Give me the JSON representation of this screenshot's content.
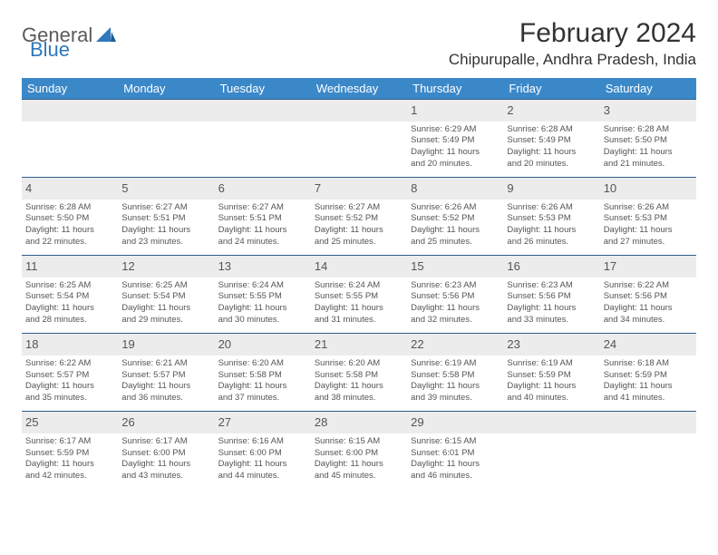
{
  "logo": {
    "part1": "General",
    "part2": "Blue"
  },
  "title": "February 2024",
  "location": "Chipurupalle, Andhra Pradesh, India",
  "colors": {
    "header_bg": "#3b88c9",
    "header_text": "#ffffff",
    "row_border": "#2f5e8c",
    "shade_bg": "#ececec",
    "text": "#444444",
    "logo_gray": "#5a5a5a",
    "logo_blue": "#2f78bd"
  },
  "day_headers": [
    "Sunday",
    "Monday",
    "Tuesday",
    "Wednesday",
    "Thursday",
    "Friday",
    "Saturday"
  ],
  "weeks": [
    [
      null,
      null,
      null,
      null,
      {
        "n": "1",
        "sr": "Sunrise: 6:29 AM",
        "ss": "Sunset: 5:49 PM",
        "d1": "Daylight: 11 hours",
        "d2": "and 20 minutes."
      },
      {
        "n": "2",
        "sr": "Sunrise: 6:28 AM",
        "ss": "Sunset: 5:49 PM",
        "d1": "Daylight: 11 hours",
        "d2": "and 20 minutes."
      },
      {
        "n": "3",
        "sr": "Sunrise: 6:28 AM",
        "ss": "Sunset: 5:50 PM",
        "d1": "Daylight: 11 hours",
        "d2": "and 21 minutes."
      }
    ],
    [
      {
        "n": "4",
        "sr": "Sunrise: 6:28 AM",
        "ss": "Sunset: 5:50 PM",
        "d1": "Daylight: 11 hours",
        "d2": "and 22 minutes."
      },
      {
        "n": "5",
        "sr": "Sunrise: 6:27 AM",
        "ss": "Sunset: 5:51 PM",
        "d1": "Daylight: 11 hours",
        "d2": "and 23 minutes."
      },
      {
        "n": "6",
        "sr": "Sunrise: 6:27 AM",
        "ss": "Sunset: 5:51 PM",
        "d1": "Daylight: 11 hours",
        "d2": "and 24 minutes."
      },
      {
        "n": "7",
        "sr": "Sunrise: 6:27 AM",
        "ss": "Sunset: 5:52 PM",
        "d1": "Daylight: 11 hours",
        "d2": "and 25 minutes."
      },
      {
        "n": "8",
        "sr": "Sunrise: 6:26 AM",
        "ss": "Sunset: 5:52 PM",
        "d1": "Daylight: 11 hours",
        "d2": "and 25 minutes."
      },
      {
        "n": "9",
        "sr": "Sunrise: 6:26 AM",
        "ss": "Sunset: 5:53 PM",
        "d1": "Daylight: 11 hours",
        "d2": "and 26 minutes."
      },
      {
        "n": "10",
        "sr": "Sunrise: 6:26 AM",
        "ss": "Sunset: 5:53 PM",
        "d1": "Daylight: 11 hours",
        "d2": "and 27 minutes."
      }
    ],
    [
      {
        "n": "11",
        "sr": "Sunrise: 6:25 AM",
        "ss": "Sunset: 5:54 PM",
        "d1": "Daylight: 11 hours",
        "d2": "and 28 minutes."
      },
      {
        "n": "12",
        "sr": "Sunrise: 6:25 AM",
        "ss": "Sunset: 5:54 PM",
        "d1": "Daylight: 11 hours",
        "d2": "and 29 minutes."
      },
      {
        "n": "13",
        "sr": "Sunrise: 6:24 AM",
        "ss": "Sunset: 5:55 PM",
        "d1": "Daylight: 11 hours",
        "d2": "and 30 minutes."
      },
      {
        "n": "14",
        "sr": "Sunrise: 6:24 AM",
        "ss": "Sunset: 5:55 PM",
        "d1": "Daylight: 11 hours",
        "d2": "and 31 minutes."
      },
      {
        "n": "15",
        "sr": "Sunrise: 6:23 AM",
        "ss": "Sunset: 5:56 PM",
        "d1": "Daylight: 11 hours",
        "d2": "and 32 minutes."
      },
      {
        "n": "16",
        "sr": "Sunrise: 6:23 AM",
        "ss": "Sunset: 5:56 PM",
        "d1": "Daylight: 11 hours",
        "d2": "and 33 minutes."
      },
      {
        "n": "17",
        "sr": "Sunrise: 6:22 AM",
        "ss": "Sunset: 5:56 PM",
        "d1": "Daylight: 11 hours",
        "d2": "and 34 minutes."
      }
    ],
    [
      {
        "n": "18",
        "sr": "Sunrise: 6:22 AM",
        "ss": "Sunset: 5:57 PM",
        "d1": "Daylight: 11 hours",
        "d2": "and 35 minutes."
      },
      {
        "n": "19",
        "sr": "Sunrise: 6:21 AM",
        "ss": "Sunset: 5:57 PM",
        "d1": "Daylight: 11 hours",
        "d2": "and 36 minutes."
      },
      {
        "n": "20",
        "sr": "Sunrise: 6:20 AM",
        "ss": "Sunset: 5:58 PM",
        "d1": "Daylight: 11 hours",
        "d2": "and 37 minutes."
      },
      {
        "n": "21",
        "sr": "Sunrise: 6:20 AM",
        "ss": "Sunset: 5:58 PM",
        "d1": "Daylight: 11 hours",
        "d2": "and 38 minutes."
      },
      {
        "n": "22",
        "sr": "Sunrise: 6:19 AM",
        "ss": "Sunset: 5:58 PM",
        "d1": "Daylight: 11 hours",
        "d2": "and 39 minutes."
      },
      {
        "n": "23",
        "sr": "Sunrise: 6:19 AM",
        "ss": "Sunset: 5:59 PM",
        "d1": "Daylight: 11 hours",
        "d2": "and 40 minutes."
      },
      {
        "n": "24",
        "sr": "Sunrise: 6:18 AM",
        "ss": "Sunset: 5:59 PM",
        "d1": "Daylight: 11 hours",
        "d2": "and 41 minutes."
      }
    ],
    [
      {
        "n": "25",
        "sr": "Sunrise: 6:17 AM",
        "ss": "Sunset: 5:59 PM",
        "d1": "Daylight: 11 hours",
        "d2": "and 42 minutes."
      },
      {
        "n": "26",
        "sr": "Sunrise: 6:17 AM",
        "ss": "Sunset: 6:00 PM",
        "d1": "Daylight: 11 hours",
        "d2": "and 43 minutes."
      },
      {
        "n": "27",
        "sr": "Sunrise: 6:16 AM",
        "ss": "Sunset: 6:00 PM",
        "d1": "Daylight: 11 hours",
        "d2": "and 44 minutes."
      },
      {
        "n": "28",
        "sr": "Sunrise: 6:15 AM",
        "ss": "Sunset: 6:00 PM",
        "d1": "Daylight: 11 hours",
        "d2": "and 45 minutes."
      },
      {
        "n": "29",
        "sr": "Sunrise: 6:15 AM",
        "ss": "Sunset: 6:01 PM",
        "d1": "Daylight: 11 hours",
        "d2": "and 46 minutes."
      },
      null,
      null
    ]
  ]
}
